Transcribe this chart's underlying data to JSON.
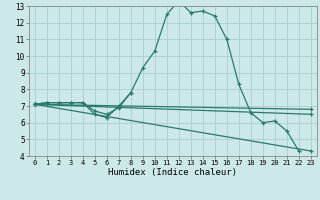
{
  "background_color": "#cce8e8",
  "grid_color": "#aacece",
  "line_color": "#2a7a6a",
  "xlabel": "Humidex (Indice chaleur)",
  "xlim": [
    -0.5,
    23.5
  ],
  "ylim": [
    4,
    13
  ],
  "xticks": [
    0,
    1,
    2,
    3,
    4,
    5,
    6,
    7,
    8,
    9,
    10,
    11,
    12,
    13,
    14,
    15,
    16,
    17,
    18,
    19,
    20,
    21,
    22,
    23
  ],
  "yticks": [
    4,
    5,
    6,
    7,
    8,
    9,
    10,
    11,
    12,
    13
  ],
  "curves": [
    {
      "x": [
        0,
        1,
        2,
        3,
        4,
        5,
        6,
        7,
        8,
        9,
        10,
        11,
        12,
        13,
        14,
        15,
        16,
        17,
        18,
        19,
        20,
        21,
        22
      ],
      "y": [
        7.1,
        7.2,
        7.2,
        7.2,
        7.2,
        6.5,
        6.3,
        7.0,
        7.8,
        9.3,
        10.3,
        12.5,
        13.3,
        12.6,
        12.7,
        12.4,
        11.0,
        8.3,
        6.6,
        6.0,
        6.1,
        5.5,
        4.3
      ]
    },
    {
      "x": [
        0,
        1,
        2,
        3,
        4,
        5,
        6,
        7,
        8
      ],
      "y": [
        7.1,
        7.2,
        7.2,
        7.2,
        7.2,
        6.7,
        6.5,
        6.9,
        7.8
      ]
    },
    {
      "x": [
        0,
        23
      ],
      "y": [
        7.1,
        4.3
      ]
    },
    {
      "x": [
        0,
        23
      ],
      "y": [
        7.1,
        6.5
      ]
    },
    {
      "x": [
        0,
        23
      ],
      "y": [
        7.1,
        6.8
      ]
    }
  ]
}
